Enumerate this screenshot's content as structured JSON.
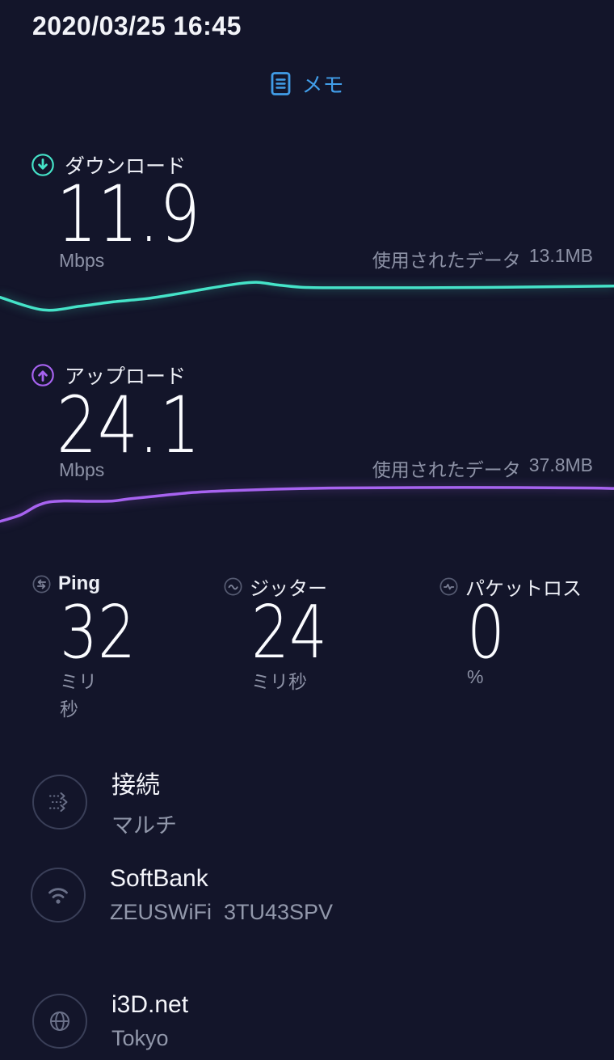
{
  "header": {
    "datetime": "2020/03/25 16:45",
    "note_label": "メモ"
  },
  "download": {
    "label": "ダウンロード",
    "value": "11.9",
    "unit": "Mbps",
    "data_used_label": "使用されたデータ",
    "data_used_value": "13.1MB"
  },
  "upload": {
    "label": "アップロード",
    "value": "24.1",
    "unit": "Mbps",
    "data_used_label": "使用されたデータ",
    "data_used_value": "37.8MB"
  },
  "metrics": [
    {
      "label": "Ping",
      "value": "32",
      "unit": "ミリ秒",
      "icon": "ping-icon"
    },
    {
      "label": "ジッター",
      "value": "24",
      "unit": "ミリ秒",
      "icon": "jitter-icon"
    },
    {
      "label": "パケットロス",
      "value": "0",
      "unit": "%",
      "icon": "packet-loss-icon"
    }
  ],
  "connection": {
    "label": "接続",
    "value": "マルチ",
    "icon": "multi-connection-icon"
  },
  "network": {
    "name": "SoftBank",
    "detail": "ZEUSWiFi  3TU43SPV",
    "icon": "wifi-icon"
  },
  "server": {
    "name": "i3D.net",
    "location": "Tokyo",
    "icon": "globe-icon"
  },
  "colors": {
    "background": "#13152a",
    "download_accent": "#45e3c8",
    "upload_accent": "#a763f0",
    "link_blue": "#419de8",
    "text_primary": "#f7f8fc",
    "text_secondary": "#8d92a6",
    "icon_muted": "#565b72"
  },
  "chart_data": [
    {
      "type": "line",
      "name": "download-speed-sparkline",
      "color": "#45e3c8",
      "points_norm": [
        [
          0,
          0.51
        ],
        [
          0.07,
          0.72
        ],
        [
          0.13,
          0.66
        ],
        [
          0.18,
          0.59
        ],
        [
          0.24,
          0.53
        ],
        [
          0.29,
          0.45
        ],
        [
          0.34,
          0.36
        ],
        [
          0.39,
          0.28
        ],
        [
          0.42,
          0.26
        ],
        [
          0.45,
          0.3
        ],
        [
          0.49,
          0.34
        ],
        [
          0.55,
          0.35
        ],
        [
          0.66,
          0.35
        ],
        [
          0.79,
          0.345
        ],
        [
          1,
          0.32
        ]
      ]
    },
    {
      "type": "line",
      "name": "upload-speed-sparkline",
      "color": "#a763f0",
      "points_norm": [
        [
          0,
          0.74
        ],
        [
          0.033,
          0.635
        ],
        [
          0.059,
          0.486
        ],
        [
          0.079,
          0.419
        ],
        [
          0.105,
          0.4
        ],
        [
          0.145,
          0.405
        ],
        [
          0.184,
          0.4
        ],
        [
          0.21,
          0.365
        ],
        [
          0.263,
          0.31
        ],
        [
          0.316,
          0.257
        ],
        [
          0.368,
          0.23
        ],
        [
          0.447,
          0.203
        ],
        [
          0.553,
          0.182
        ],
        [
          0.684,
          0.176
        ],
        [
          0.842,
          0.176
        ],
        [
          0.947,
          0.182
        ],
        [
          1,
          0.19
        ]
      ]
    }
  ]
}
